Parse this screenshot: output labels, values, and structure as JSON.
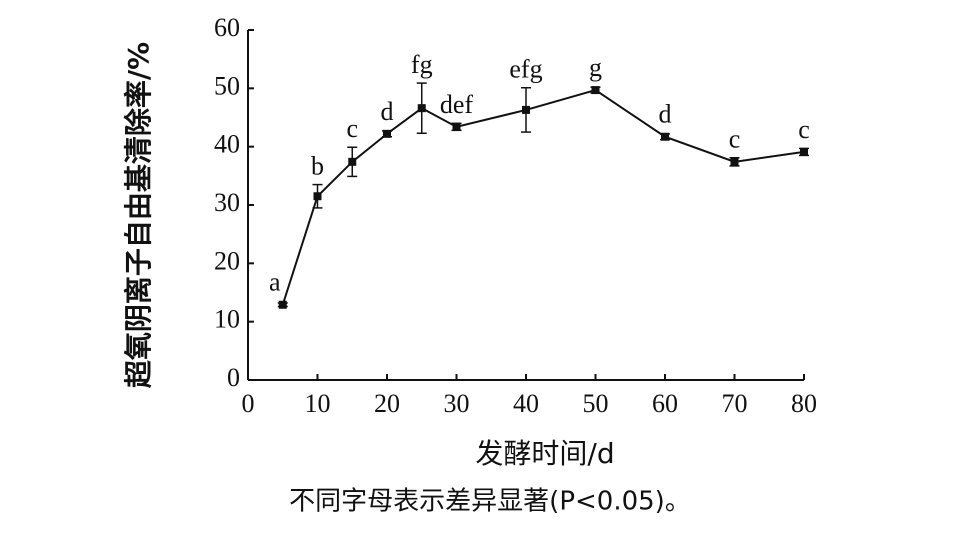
{
  "chart_data": {
    "type": "line",
    "xlabel": "发酵时间/d",
    "ylabel": "超氧阴离子自由基清除率/%",
    "caption": "不同字母表示差异显著(P<0.05)。",
    "x": [
      5,
      10,
      15,
      20,
      25,
      30,
      40,
      50,
      60,
      70,
      80
    ],
    "series": [
      {
        "color": "#111111",
        "values": [
          12.9,
          31.5,
          37.4,
          42.2,
          46.6,
          43.4,
          46.3,
          49.7,
          41.7,
          37.4,
          39.1
        ],
        "errors": [
          0.3,
          2.0,
          2.5,
          0.5,
          4.3,
          0.6,
          3.8,
          0.5,
          0.5,
          0.7,
          0.6
        ],
        "labels": [
          "a",
          "b",
          "c",
          "d",
          "fg",
          "def",
          "efg",
          "g",
          "d",
          "c",
          "c"
        ]
      }
    ],
    "xlim": [
      0,
      80
    ],
    "xticks": [
      0,
      10,
      20,
      30,
      40,
      50,
      60,
      70,
      80
    ],
    "ylim": [
      0,
      60
    ],
    "yticks": [
      0,
      10,
      20,
      30,
      40,
      50,
      60
    ]
  }
}
